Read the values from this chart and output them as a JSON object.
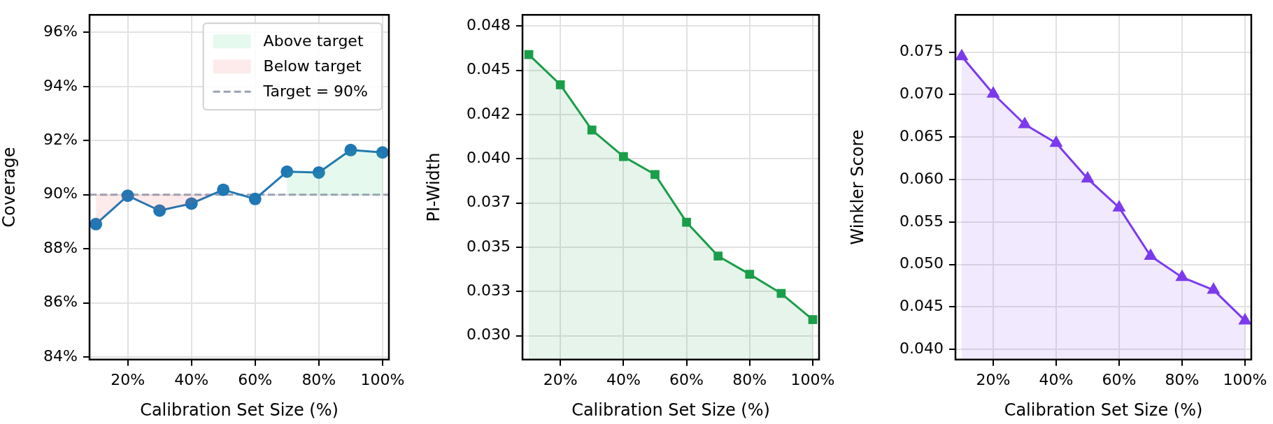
{
  "chart_data": [
    {
      "type": "line",
      "xlabel": "Calibration Set Size (%)",
      "ylabel": "Coverage",
      "x": [
        10,
        20,
        30,
        40,
        50,
        60,
        70,
        80,
        90,
        100
      ],
      "xlim": [
        8,
        102
      ],
      "xticks": [
        {
          "value": 20,
          "label": "20%"
        },
        {
          "value": 40,
          "label": "40%"
        },
        {
          "value": 60,
          "label": "60%"
        },
        {
          "value": 80,
          "label": "80%"
        },
        {
          "value": 100,
          "label": "100%"
        }
      ],
      "ylim": [
        83.9,
        96.65
      ],
      "yticks": [
        {
          "value": 84,
          "label": "84%"
        },
        {
          "value": 86,
          "label": "86%"
        },
        {
          "value": 88,
          "label": "88%"
        },
        {
          "value": 90,
          "label": "90%"
        },
        {
          "value": 92,
          "label": "92%"
        },
        {
          "value": 94,
          "label": "94%"
        },
        {
          "value": 96,
          "label": "96%"
        }
      ],
      "grid": true,
      "legend": "top right",
      "series": [
        {
          "color": "#1f77b4",
          "marker": "circle",
          "values": [
            88.91,
            89.96,
            89.41,
            89.67,
            90.18,
            89.84,
            90.85,
            90.82,
            91.65,
            91.56
          ]
        },
        {
          "type": "area",
          "name": "Above target",
          "color": "#2ecc71",
          "marker": "none",
          "values": [
            null,
            null,
            null,
            null,
            null,
            null,
            90.85,
            90.82,
            91.65,
            91.56
          ]
        },
        {
          "type": "area",
          "name": "Below target",
          "color": "#f05a5a",
          "marker": "none",
          "x": [
            10,
            20,
            30,
            40,
            46.5
          ],
          "values": [
            88.91,
            89.96,
            89.41,
            89.67,
            90
          ]
        }
      ],
      "ref_lines": [
        {
          "axis": "y",
          "value": 90,
          "label": "Target = 90%",
          "color": "#9aa2b2",
          "line_style": "dashed"
        }
      ]
    },
    {
      "type": "area",
      "xlabel": "Calibration Set Size (%)",
      "ylabel": "PI-Width",
      "x": [
        10,
        20,
        30,
        40,
        50,
        60,
        70,
        80,
        90,
        100
      ],
      "xlim": [
        8,
        102
      ],
      "xticks": [
        {
          "value": 20,
          "label": "20%"
        },
        {
          "value": 40,
          "label": "40%"
        },
        {
          "value": 60,
          "label": "60%"
        },
        {
          "value": 80,
          "label": "80%"
        },
        {
          "value": 100,
          "label": "100%"
        }
      ],
      "ylim": [
        0.02865,
        0.04813
      ],
      "yticks": [
        {
          "value": 0.03,
          "label": "0.030"
        },
        {
          "value": 0.0325,
          "label": "0.033"
        },
        {
          "value": 0.035,
          "label": "0.035"
        },
        {
          "value": 0.0375,
          "label": "0.037"
        },
        {
          "value": 0.04,
          "label": "0.040"
        },
        {
          "value": 0.0425,
          "label": "0.042"
        },
        {
          "value": 0.045,
          "label": "0.045"
        },
        {
          "value": 0.0475,
          "label": "0.048"
        }
      ],
      "grid": true,
      "series": [
        {
          "color": "#1a9e4a",
          "marker": "square",
          "values": [
            0.04588,
            0.04418,
            0.04162,
            0.04012,
            0.03911,
            0.03641,
            0.0345,
            0.03347,
            0.03239,
            0.03091
          ]
        }
      ]
    },
    {
      "type": "area",
      "xlabel": "Calibration Set Size (%)",
      "ylabel": "Winkler Score",
      "x": [
        10,
        20,
        30,
        40,
        50,
        60,
        70,
        80,
        90,
        100
      ],
      "xlim": [
        8,
        102
      ],
      "xticks": [
        {
          "value": 20,
          "label": "20%"
        },
        {
          "value": 40,
          "label": "40%"
        },
        {
          "value": 60,
          "label": "60%"
        },
        {
          "value": 80,
          "label": "80%"
        },
        {
          "value": 100,
          "label": "100%"
        }
      ],
      "ylim": [
        0.0388,
        0.0794
      ],
      "yticks": [
        {
          "value": 0.04,
          "label": "0.040"
        },
        {
          "value": 0.045,
          "label": "0.045"
        },
        {
          "value": 0.05,
          "label": "0.050"
        },
        {
          "value": 0.055,
          "label": "0.055"
        },
        {
          "value": 0.06,
          "label": "0.060"
        },
        {
          "value": 0.065,
          "label": "0.065"
        },
        {
          "value": 0.07,
          "label": "0.070"
        },
        {
          "value": 0.075,
          "label": "0.075"
        }
      ],
      "grid": true,
      "series": [
        {
          "color": "#7c3aed",
          "marker": "triangle",
          "values": [
            0.0745,
            0.0701,
            0.0665,
            0.0643,
            0.0601,
            0.0567,
            0.051,
            0.0485,
            0.047,
            0.0434
          ]
        }
      ]
    }
  ]
}
